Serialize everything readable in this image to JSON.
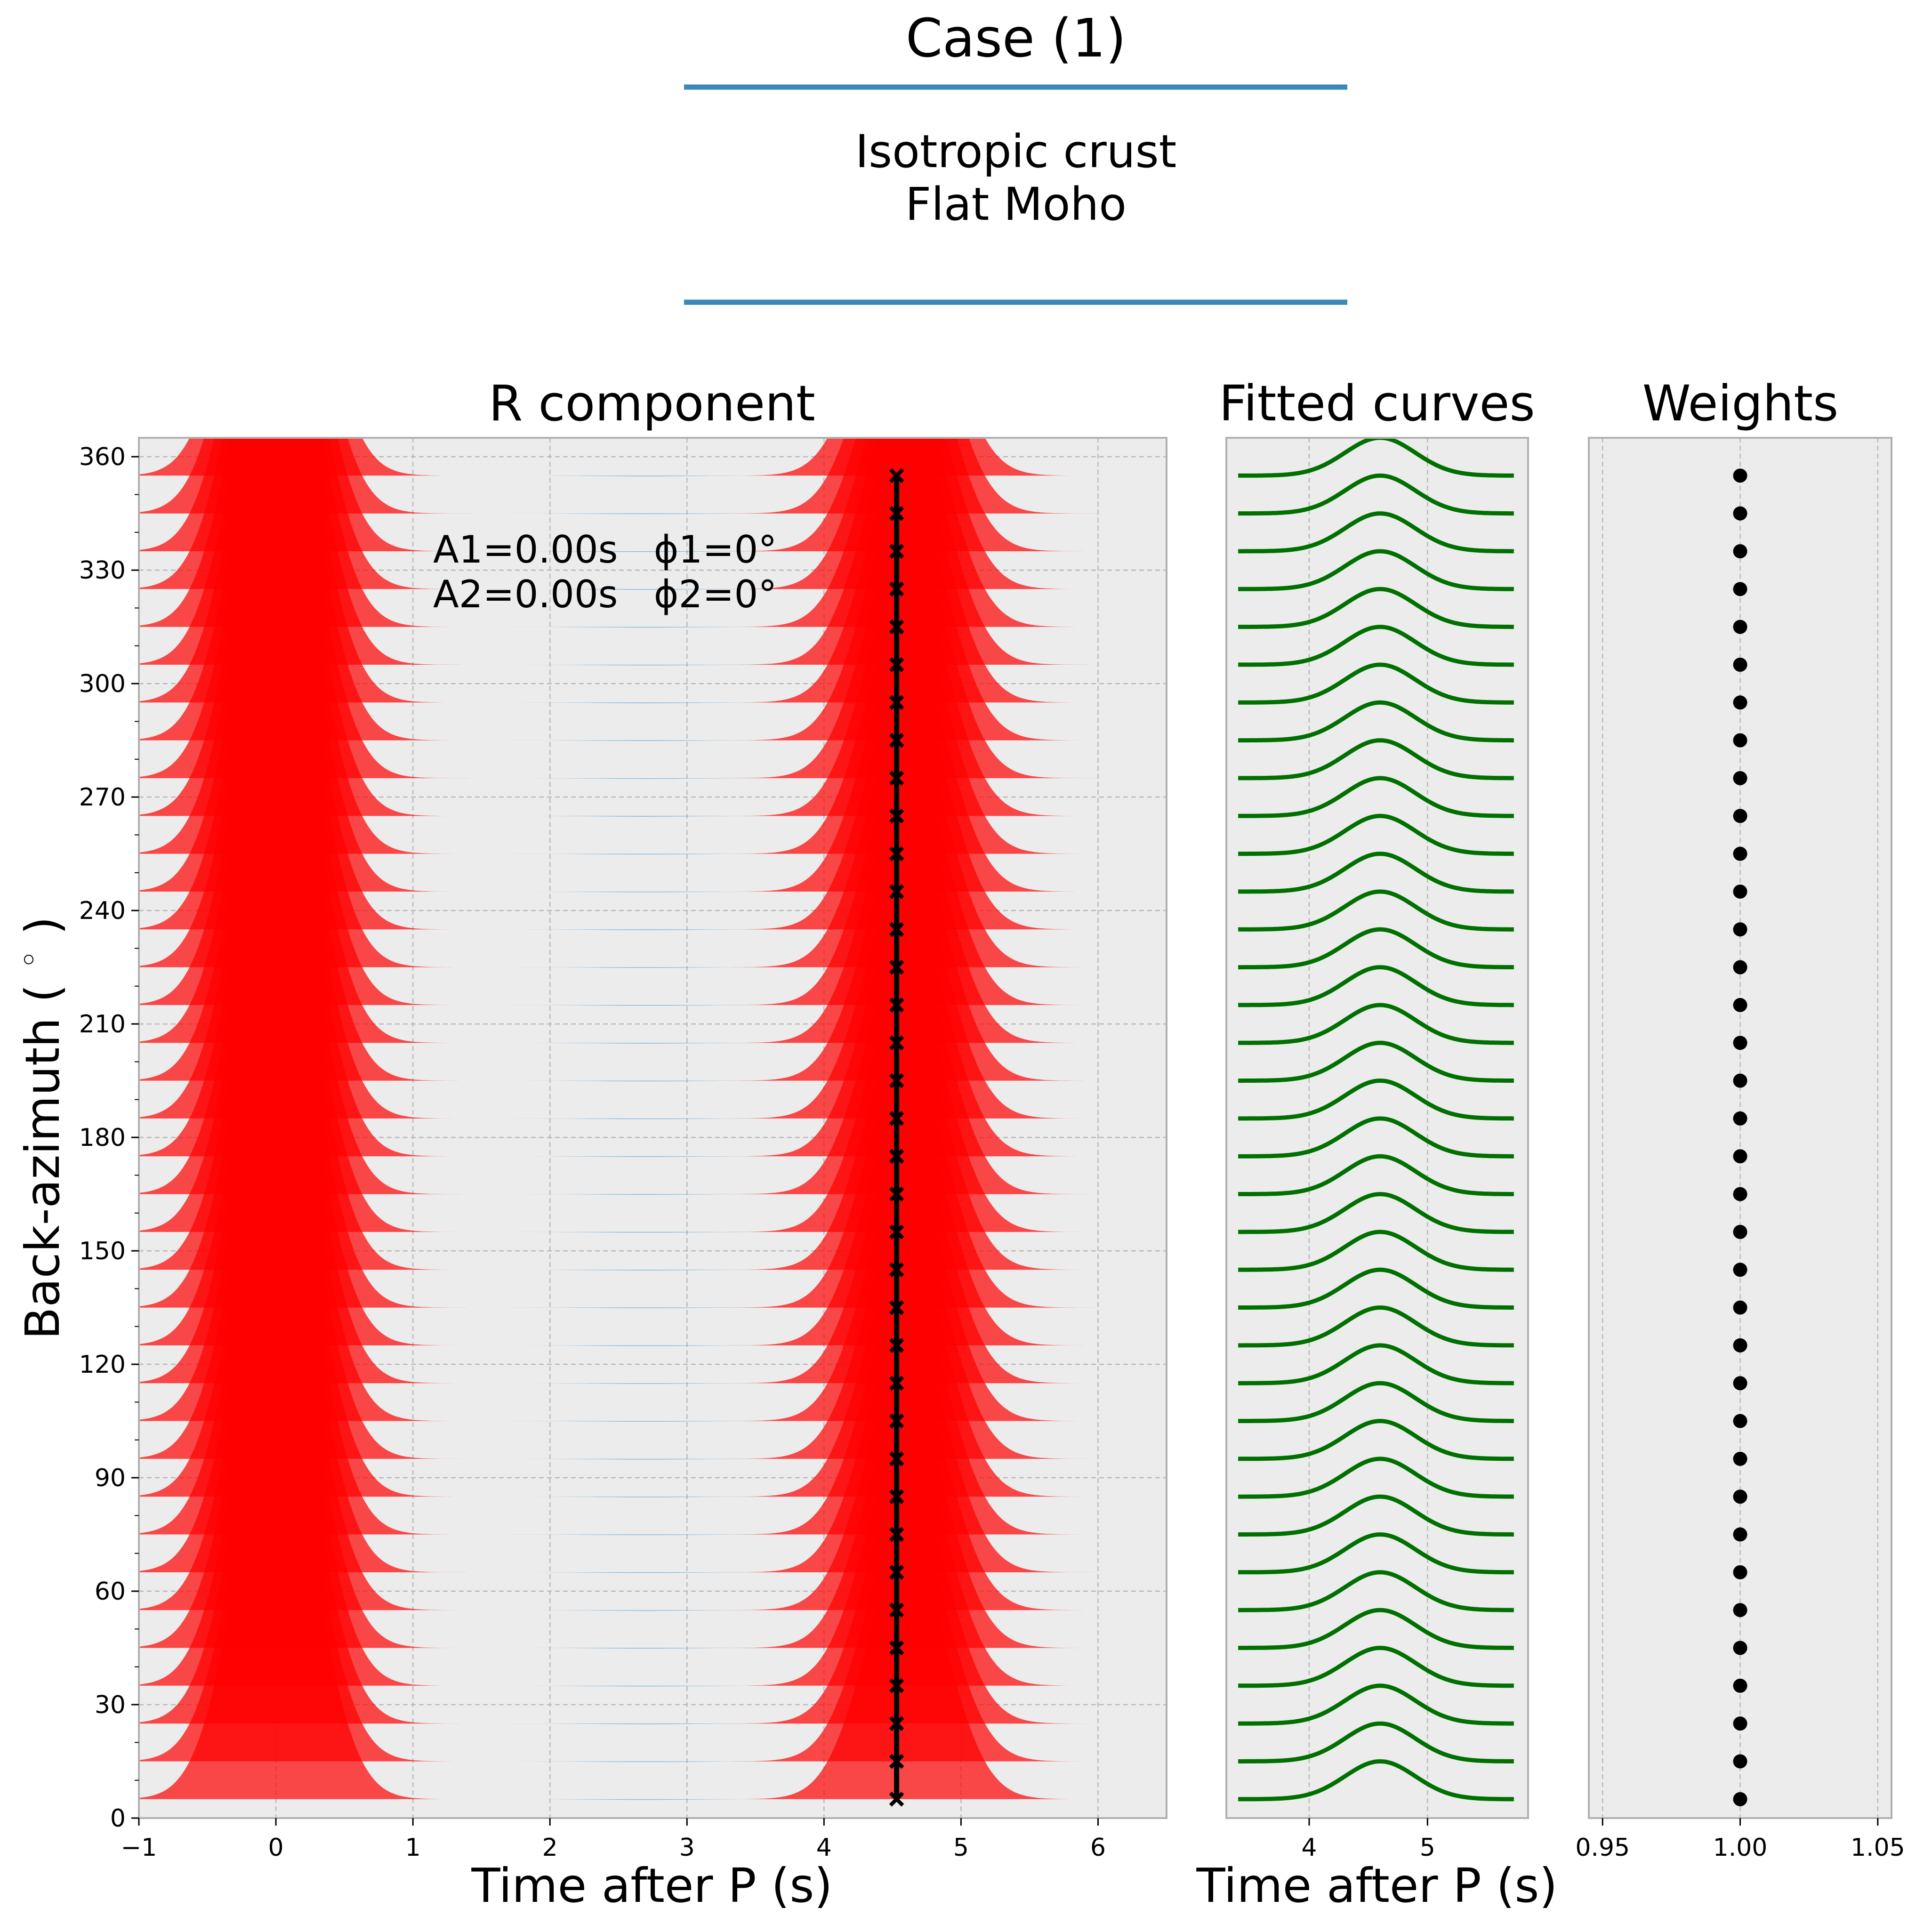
{
  "header": {
    "title": "Case (1)",
    "subtitle_lines": [
      "Isotropic crust",
      "Flat Moho"
    ],
    "rule_color": "#3a87b8"
  },
  "colors": {
    "panel_bg": "#ececec",
    "positive_fill": "#ff0000",
    "negative_fill": "#2f8fd6",
    "fitted_curve": "#007000",
    "marker": "#000000"
  },
  "chart_data": [
    {
      "type": "area",
      "panel": "R component",
      "title": "R component",
      "xlabel": "Time after P (s)",
      "ylabel": "Back-azimuth ($^\\circ$)",
      "xlim": [
        -1,
        6.5
      ],
      "ylim": [
        0,
        365
      ],
      "xticks": [
        -1,
        0,
        1,
        2,
        3,
        4,
        5,
        6
      ],
      "xtick_labels": [
        "−1",
        "0",
        "1",
        "2",
        "3",
        "4",
        "5",
        "6"
      ],
      "yticks": [
        0,
        30,
        60,
        90,
        120,
        150,
        180,
        210,
        240,
        270,
        300,
        330,
        360
      ],
      "ytick_labels": [
        "0",
        "30",
        "60",
        "90",
        "120",
        "150",
        "180",
        "210",
        "240",
        "270",
        "300",
        "330",
        "360"
      ],
      "grid": true,
      "annotations": [
        "A1=0.00s   ϕ1=0°",
        "A2=0.00s   ϕ2=0°"
      ],
      "back_azimuths": [
        5,
        15,
        25,
        35,
        45,
        55,
        65,
        75,
        85,
        95,
        105,
        115,
        125,
        135,
        145,
        155,
        165,
        175,
        185,
        195,
        205,
        215,
        225,
        235,
        245,
        255,
        265,
        275,
        285,
        295,
        305,
        315,
        325,
        335,
        345,
        355
      ],
      "pulses": [
        {
          "center_time": 0.0,
          "peak_offset_deg": 95
        },
        {
          "center_time": 4.6,
          "peak_offset_deg": 65
        }
      ],
      "picked_time": 4.53,
      "pick_markers": "x"
    },
    {
      "type": "line",
      "panel": "Fitted curves",
      "title": "Fitted curves",
      "xlabel": "Time after P (s)",
      "xlim": [
        3.3,
        5.85
      ],
      "xticks": [
        4,
        5
      ],
      "xtick_labels": [
        "4",
        "5"
      ],
      "ylim": [
        0,
        365
      ],
      "grid": true,
      "back_azimuths": [
        5,
        15,
        25,
        35,
        45,
        55,
        65,
        75,
        85,
        95,
        105,
        115,
        125,
        135,
        145,
        155,
        165,
        175,
        185,
        195,
        205,
        215,
        225,
        235,
        245,
        255,
        265,
        275,
        285,
        295,
        305,
        315,
        325,
        335,
        345,
        355
      ],
      "peak_time": 4.6,
      "peak_height_deg": 10
    },
    {
      "type": "scatter",
      "panel": "Weights",
      "title": "Weights",
      "xlim": [
        0.945,
        1.055
      ],
      "xticks": [
        0.95,
        1.0,
        1.05
      ],
      "xtick_labels": [
        "0.95",
        "1.00",
        "1.05"
      ],
      "ylim": [
        0,
        365
      ],
      "grid": true,
      "x": [
        1,
        1,
        1,
        1,
        1,
        1,
        1,
        1,
        1,
        1,
        1,
        1,
        1,
        1,
        1,
        1,
        1,
        1,
        1,
        1,
        1,
        1,
        1,
        1,
        1,
        1,
        1,
        1,
        1,
        1,
        1,
        1,
        1,
        1,
        1,
        1
      ],
      "y": [
        5,
        15,
        25,
        35,
        45,
        55,
        65,
        75,
        85,
        95,
        105,
        115,
        125,
        135,
        145,
        155,
        165,
        175,
        185,
        195,
        205,
        215,
        225,
        235,
        245,
        255,
        265,
        275,
        285,
        295,
        305,
        315,
        325,
        335,
        345,
        355
      ]
    }
  ]
}
